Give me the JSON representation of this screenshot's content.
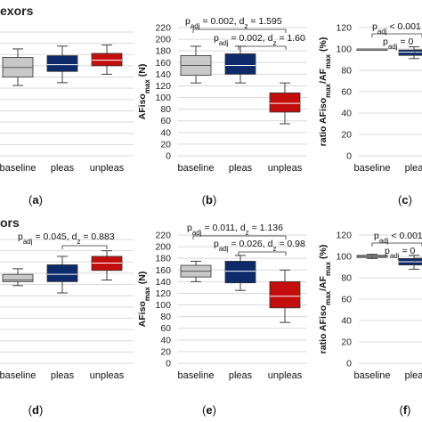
{
  "section_titles": [
    "exors",
    "ors"
  ],
  "panels": [
    {
      "tag_open": "(",
      "tag_letter": "a",
      "tag_close": ")"
    },
    {
      "tag_open": "(",
      "tag_letter": "b",
      "tag_close": ")"
    },
    {
      "tag_open": "(",
      "tag_letter": "c",
      "tag_close": ")"
    },
    {
      "tag_open": "(",
      "tag_letter": "d",
      "tag_close": ")"
    },
    {
      "tag_open": "(",
      "tag_letter": "e",
      "tag_close": ")"
    },
    {
      "tag_open": "(",
      "tag_letter": "f",
      "tag_close": ")"
    }
  ],
  "colors": {
    "baseline": "#c8c8c8",
    "pleas": "#0d2a6b",
    "unpleas": "#c40e0e",
    "grid": "#d9d9d9",
    "whisker": "#404040"
  },
  "chart_data": [
    {
      "type": "box",
      "categories": [
        "baseline",
        "pleas",
        "unpleas"
      ],
      "ylim": [
        0,
        220
      ],
      "series": [
        {
          "category": "baseline",
          "min": 125,
          "q1": 140,
          "median": 157,
          "q3": 175,
          "max": 190
        },
        {
          "category": "pleas",
          "min": 130,
          "q1": 150,
          "median": 162,
          "q3": 178,
          "max": 195
        },
        {
          "category": "unpleas",
          "min": 145,
          "q1": 160,
          "median": 170,
          "q3": 182,
          "max": 197
        }
      ],
      "annotations": []
    },
    {
      "type": "box",
      "ylabel_main": "AFiso",
      "ylabel_sub": "max",
      "ylabel_tail": " (N)",
      "categories": [
        "baseline",
        "pleas",
        "unpleas"
      ],
      "ylim": [
        0,
        220
      ],
      "yticks": [
        0,
        20,
        40,
        60,
        80,
        100,
        120,
        140,
        160,
        180,
        200,
        220
      ],
      "series": [
        {
          "category": "baseline",
          "min": 125,
          "q1": 138,
          "median": 155,
          "q3": 172,
          "max": 188
        },
        {
          "category": "pleas",
          "min": 125,
          "q1": 140,
          "median": 155,
          "q3": 175,
          "max": 188
        },
        {
          "category": "unpleas",
          "min": 55,
          "q1": 75,
          "median": 90,
          "q3": 108,
          "max": 125
        }
      ],
      "annotations": [
        {
          "p": "p",
          "p_sub": "adj",
          "text": " = 0.002, d",
          "d_sub": "z",
          "value": " = 1.595"
        },
        {
          "p": "p",
          "p_sub": "adj",
          "text": " = 0.002, d",
          "d_sub": "z",
          "value": " = 1.60"
        }
      ]
    },
    {
      "type": "box",
      "ylabel_main": "ratio AFiso",
      "ylabel_sub": "max",
      "ylabel_mid": "/AF",
      "ylabel_sub2": "max",
      "ylabel_tail": " (%)",
      "categories": [
        "baseline",
        "plea"
      ],
      "ylim": [
        0,
        120
      ],
      "yticks": [
        0,
        20,
        40,
        60,
        80,
        100,
        120
      ],
      "series": [
        {
          "category": "baseline",
          "min": 100,
          "q1": 100,
          "median": 100,
          "q3": 100,
          "max": 100
        },
        {
          "category": "plea",
          "min": 91,
          "q1": 94,
          "median": 97,
          "q3": 99,
          "max": 102
        }
      ],
      "annotations": [
        {
          "p": "p",
          "p_sub": "adj",
          "text": " < 0.001"
        },
        {
          "p": "p",
          "p_sub": "adj",
          "text": " = 0"
        }
      ]
    },
    {
      "type": "box",
      "categories": [
        "baseline",
        "pleas",
        "unpleas"
      ],
      "ylim": [
        0,
        220
      ],
      "series": [
        {
          "category": "baseline",
          "min": 138,
          "q1": 145,
          "median": 148,
          "q3": 158,
          "max": 168
        },
        {
          "category": "pleas",
          "min": 125,
          "q1": 145,
          "median": 158,
          "q3": 175,
          "max": 190
        },
        {
          "category": "unpleas",
          "min": 148,
          "q1": 165,
          "median": 178,
          "q3": 190,
          "max": 200
        }
      ],
      "annotations": [
        {
          "p": "p",
          "p_sub": "adj",
          "text": " = 0.045, d",
          "d_sub": "z",
          "value": " = 0.883"
        }
      ]
    },
    {
      "type": "box",
      "ylabel_main": "AFiso",
      "ylabel_sub": "max",
      "ylabel_tail": " (N)",
      "categories": [
        "baseline",
        "pleas",
        "unpleas"
      ],
      "ylim": [
        0,
        220
      ],
      "yticks": [
        0,
        20,
        40,
        60,
        80,
        100,
        120,
        140,
        160,
        180,
        200,
        220
      ],
      "series": [
        {
          "category": "baseline",
          "min": 140,
          "q1": 148,
          "median": 158,
          "q3": 168,
          "max": 175
        },
        {
          "category": "pleas",
          "min": 125,
          "q1": 138,
          "median": 158,
          "q3": 175,
          "max": 185
        },
        {
          "category": "unpleas",
          "min": 70,
          "q1": 95,
          "median": 115,
          "q3": 140,
          "max": 160
        }
      ],
      "annotations": [
        {
          "p": "p",
          "p_sub": "adj",
          "text": " = 0.011, d",
          "d_sub": "z",
          "value": " = 1.136"
        },
        {
          "p": "p",
          "p_sub": "adj",
          "text": " = 0.026, d",
          "d_sub": "z",
          "value": " = 0.98"
        }
      ]
    },
    {
      "type": "box",
      "ylabel_main": "ratio AFiso",
      "ylabel_sub": "max",
      "ylabel_mid": "/AF",
      "ylabel_sub2": "max",
      "ylabel_tail": " (%)",
      "categories": [
        "baseline",
        "plea"
      ],
      "ylim": [
        0,
        120
      ],
      "yticks": [
        0,
        20,
        40,
        60,
        80,
        100,
        120
      ],
      "series": [
        {
          "category": "baseline",
          "min": 98,
          "q1": 99,
          "median": 100,
          "q3": 101,
          "max": 102
        },
        {
          "category": "plea",
          "min": 88,
          "q1": 92,
          "median": 95,
          "q3": 98,
          "max": 101
        }
      ],
      "annotations": [
        {
          "p": "p",
          "p_sub": "adj",
          "text": " < 0.001"
        },
        {
          "p": "p",
          "p_sub": "adj",
          "text": " = 0"
        }
      ]
    }
  ]
}
